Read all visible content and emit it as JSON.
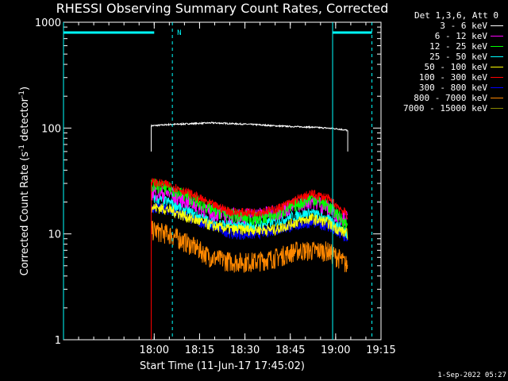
{
  "chart_data": {
    "type": "line",
    "title": "RHESSI Observing Summary Count Rates, Corrected",
    "xlabel": "Start Time (11-Jun-17 17:45:02)",
    "ylabel_main": "Corrected Count Rate (s",
    "ylabel_sup1": "-1",
    "ylabel_mid": " detector",
    "ylabel_sup2": "-1",
    "ylabel_end": ")",
    "y_scale": "log",
    "ylim": [
      1,
      1000
    ],
    "xlim_minutes": [
      -15,
      90
    ],
    "x_tick_labels": [
      "18:00",
      "18:15",
      "18:30",
      "18:45",
      "19:00",
      "19:15"
    ],
    "x_tick_minutes": [
      15,
      30,
      45,
      60,
      75,
      90
    ],
    "y_tick_labels": [
      "1",
      "10",
      "100",
      "1000"
    ],
    "y_tick_values": [
      1,
      10,
      100,
      1000
    ],
    "legend_header": "Det 1,3,6, Att 0",
    "series": [
      {
        "name": "3 - 6 keV",
        "color": "#ffffff",
        "values": [
          105,
          108,
          110,
          112,
          110,
          108,
          105,
          103,
          102,
          100,
          98,
          95
        ]
      },
      {
        "name": "6 - 12 keV",
        "color": "#ff00ff",
        "values": [
          25,
          24,
          20,
          16,
          15,
          15,
          16,
          19,
          21,
          18,
          15,
          14
        ]
      },
      {
        "name": "12 - 25 keV",
        "color": "#00ff00",
        "values": [
          29,
          27,
          22,
          17,
          15,
          14,
          15,
          19,
          22,
          19,
          15,
          12
        ]
      },
      {
        "name": "25 - 50 keV",
        "color": "#00ffff",
        "values": [
          22,
          20,
          16,
          13,
          12,
          12,
          13,
          15,
          16,
          14,
          12,
          10
        ]
      },
      {
        "name": "50 - 100 keV",
        "color": "#ffff00",
        "values": [
          18,
          17,
          14,
          12,
          11,
          11,
          11,
          13,
          14,
          13,
          11,
          10
        ]
      },
      {
        "name": "100 - 300 keV",
        "color": "#ff0000",
        "values": [
          31,
          29,
          24,
          19,
          16,
          16,
          17,
          21,
          24,
          22,
          18,
          15
        ]
      },
      {
        "name": "300 - 800 keV",
        "color": "#0000ff",
        "values": [
          18,
          17,
          14,
          12,
          10,
          10,
          11,
          12,
          13,
          12,
          10,
          9
        ]
      },
      {
        "name": "800 - 7000 keV",
        "color": "#ff8800",
        "values": [
          11,
          10,
          8,
          6,
          5.5,
          5.5,
          6,
          7,
          7,
          7,
          6,
          5
        ]
      },
      {
        "name": "7000 - 15000 keV",
        "color": "#888800",
        "values": [
          null,
          null,
          null,
          null,
          null,
          null,
          null,
          null,
          null,
          null,
          null,
          null
        ]
      }
    ],
    "x_minutes": [
      14,
      20,
      27,
      34,
      41,
      48,
      55,
      62,
      67,
      72,
      76,
      79
    ],
    "annotations": {
      "saa_label": "N",
      "night_start_minutes": -15,
      "night_bars": [
        [
          -15,
          15
        ],
        [
          74,
          87
        ]
      ],
      "dashed_minutes": [
        21,
        87
      ],
      "solid_minutes": [
        -15,
        74
      ]
    },
    "grid": false,
    "legend_position": "top-right"
  },
  "timestamp": "1-Sep-2022 05:27"
}
